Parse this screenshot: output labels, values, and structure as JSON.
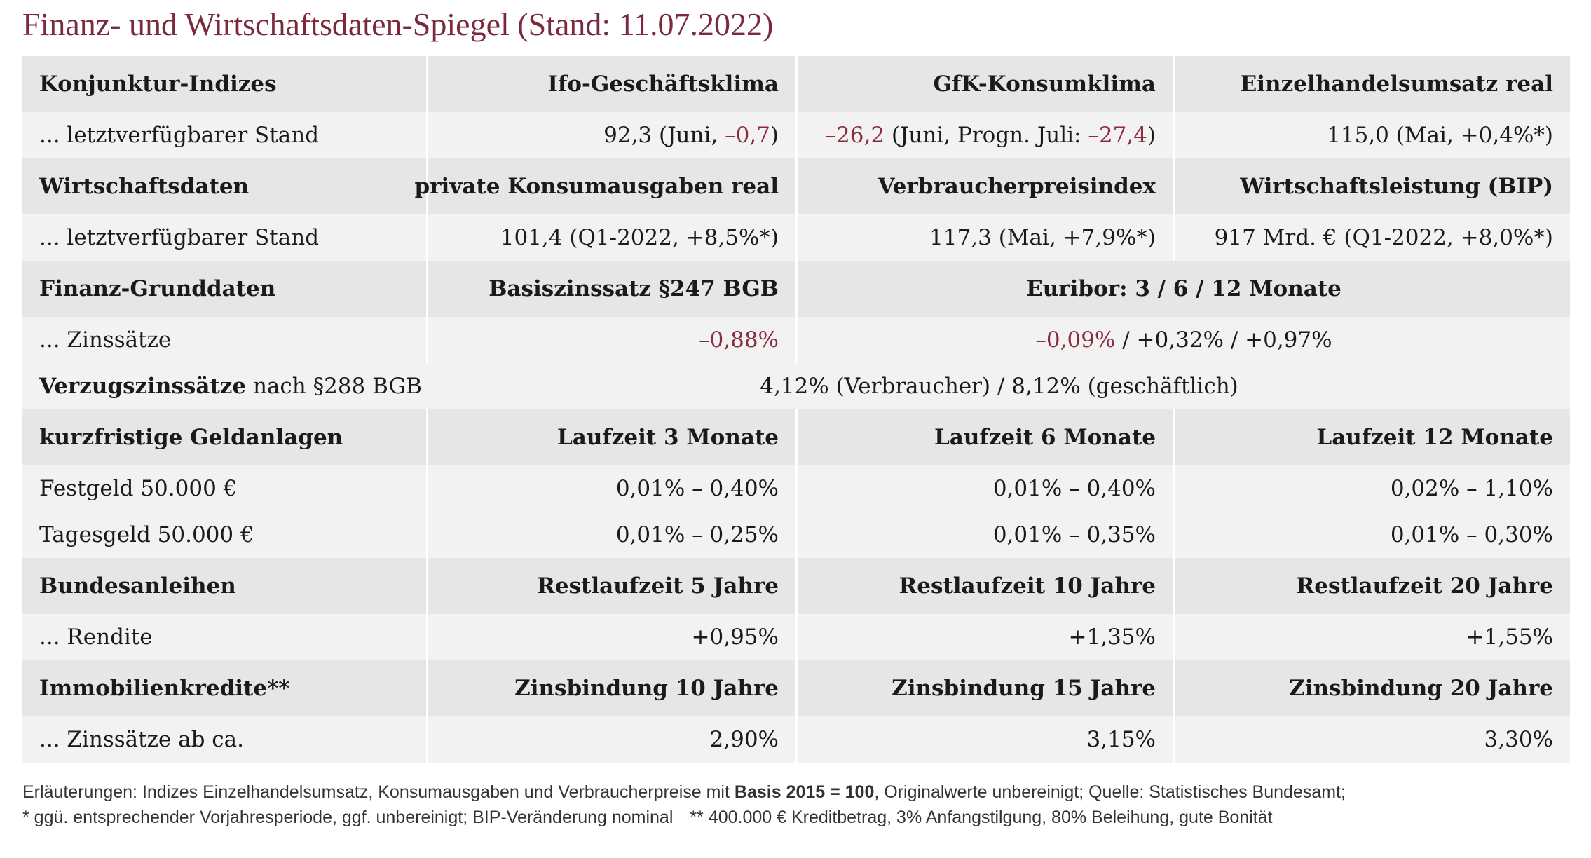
{
  "title": "Finanz- und Wirtschaftsdaten-Spiegel (Stand: 11.07.2022)",
  "table": {
    "rows": [
      {
        "header": true,
        "cells": [
          {
            "text": "Konjunktur-Indizes"
          },
          {
            "text": "Ifo-Geschäftsklima"
          },
          {
            "text": "GfK-Konsumklima"
          },
          {
            "text": "Einzelhandelsumsatz real"
          }
        ]
      },
      {
        "header": false,
        "cells": [
          {
            "text": "... letztverfügbarer Stand"
          },
          {
            "parts": [
              {
                "text": "92,3 (Juni, "
              },
              {
                "text": "–0,7",
                "color": "#8a2b3f"
              },
              {
                "text": ")"
              }
            ]
          },
          {
            "parts": [
              {
                "text": "–26,2",
                "color": "#8a2b3f"
              },
              {
                "text": " (Juni, Progn. Juli: "
              },
              {
                "text": "–27,4",
                "color": "#8a2b3f"
              },
              {
                "text": ")"
              }
            ]
          },
          {
            "text": "115,0 (Mai, +0,4%*)"
          }
        ]
      },
      {
        "header": true,
        "cells": [
          {
            "text": "Wirtschaftsdaten"
          },
          {
            "text": "private Konsumausgaben real"
          },
          {
            "text": "Verbraucherpreisindex"
          },
          {
            "text": "Wirtschaftsleistung (BIP)"
          }
        ]
      },
      {
        "header": false,
        "cells": [
          {
            "text": "... letztverfügbarer Stand"
          },
          {
            "text": "101,4 (Q1-2022, +8,5%*)"
          },
          {
            "text": "117,3 (Mai, +7,9%*)"
          },
          {
            "text": "917 Mrd. € (Q1-2022, +8,0%*)"
          }
        ]
      },
      {
        "header": true,
        "cells": [
          {
            "text": "Finanz-Grunddaten"
          },
          {
            "text": "Basiszinssatz §247 BGB"
          },
          {
            "text": "Euribor: 3 / 6 / 12 Monate",
            "span": 2
          }
        ]
      },
      {
        "header": false,
        "cells": [
          {
            "text": "... Zinssätze"
          },
          {
            "parts": [
              {
                "text": "–0,88%",
                "color": "#8a2b3f"
              }
            ]
          },
          {
            "parts": [
              {
                "text": "–0,09%",
                "color": "#8a2b3f"
              },
              {
                "text": " / +0,32% / +0,97%"
              }
            ],
            "span": 2
          }
        ]
      },
      {
        "header": false,
        "cells": [
          {
            "parts": [
              {
                "text": "Verzugszinssätze",
                "bold": true
              },
              {
                "text": " nach §288 BGB"
              }
            ]
          },
          {
            "text": "4,12% (Verbraucher) / 8,12% (geschäftlich)",
            "span": 3
          }
        ]
      },
      {
        "header": true,
        "cells": [
          {
            "text": "kurzfristige Geldanlagen"
          },
          {
            "text": "Laufzeit 3 Monate"
          },
          {
            "text": "Laufzeit 6 Monate"
          },
          {
            "text": "Laufzeit 12 Monate"
          }
        ]
      },
      {
        "header": false,
        "cells": [
          {
            "text": "Festgeld 50.000 €"
          },
          {
            "text": "0,01% – 0,40%"
          },
          {
            "text": "0,01% – 0,40%"
          },
          {
            "text": "0,02% – 1,10%"
          }
        ]
      },
      {
        "header": false,
        "cells": [
          {
            "text": "Tagesgeld 50.000 €"
          },
          {
            "text": "0,01% – 0,25%"
          },
          {
            "text": "0,01% – 0,35%"
          },
          {
            "text": "0,01% – 0,30%"
          }
        ]
      },
      {
        "header": true,
        "cells": [
          {
            "text": "Bundesanleihen"
          },
          {
            "text": "Restlaufzeit 5 Jahre"
          },
          {
            "text": "Restlaufzeit 10 Jahre"
          },
          {
            "text": "Restlaufzeit 20 Jahre"
          }
        ]
      },
      {
        "header": false,
        "cells": [
          {
            "text": "... Rendite"
          },
          {
            "text": "+0,95%"
          },
          {
            "text": "+1,35%"
          },
          {
            "text": "+1,55%"
          }
        ]
      },
      {
        "header": true,
        "cells": [
          {
            "text": "Immobilienkredite**"
          },
          {
            "text": "Zinsbindung 10 Jahre"
          },
          {
            "text": "Zinsbindung 15 Jahre"
          },
          {
            "text": "Zinsbindung 20 Jahre"
          }
        ]
      },
      {
        "header": false,
        "cells": [
          {
            "text": "... Zinssätze ab ca."
          },
          {
            "text": "2,90%"
          },
          {
            "text": "3,15%"
          },
          {
            "text": "3,30%"
          }
        ]
      }
    ]
  },
  "footnotes": [
    [
      {
        "text": "Erläuterungen: Indizes Einzelhandelsumsatz, Konsumausgaben und Verbraucherpreise mit "
      },
      {
        "text": "Basis 2015 = 100",
        "bold": true
      },
      {
        "text": ", Originalwerte unbereinigt; Quelle: Statistisches Bundesamt;"
      }
    ],
    [
      {
        "text": "* ggü. entsprechender Vorjahresperiode, ggf. unbereinigt; BIP-Veränderung nominal"
      },
      {
        "text": "** 400.000 € Kreditbetrag, 3% Anfangstilgung, 80% Beleihung, gute Bonität"
      }
    ]
  ]
}
